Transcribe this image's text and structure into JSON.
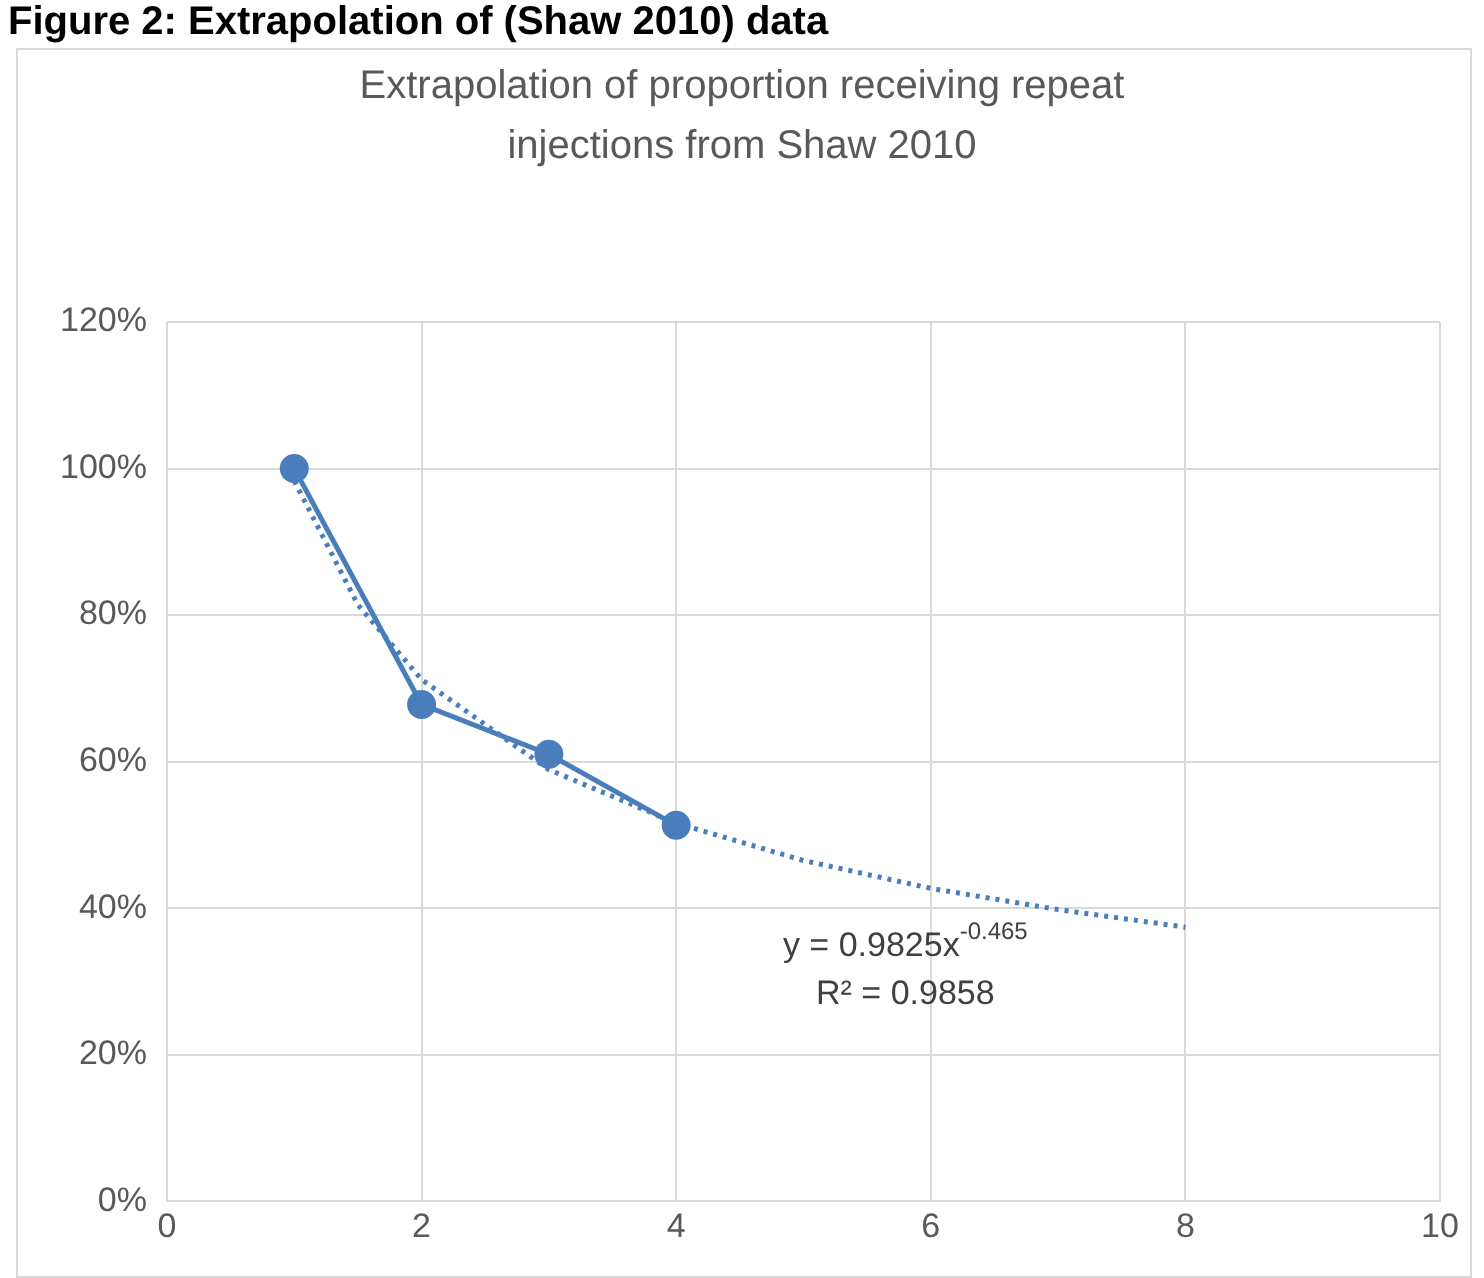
{
  "chart_data": {
    "type": "line",
    "title": "Figure 2: Extrapolation of (Shaw 2010) data",
    "subtitle": "Extrapolation of proportion receiving repeat injections from Shaw 2010",
    "x": [
      1,
      2,
      3,
      4
    ],
    "series": [
      {
        "type": "line",
        "color": "#4a7ebb",
        "marker": "circle",
        "line_style": "solid",
        "values": [
          100,
          67.8,
          61,
          51.3
        ]
      },
      {
        "type": "line",
        "color": "#4a7ebb",
        "marker": "none",
        "line_style": "dotted",
        "x": [
          1,
          1.5,
          2,
          3,
          4,
          5,
          6,
          7,
          8
        ],
        "values": [
          98.3,
          81.4,
          71.2,
          58.9,
          51.6,
          46.5,
          42.7,
          39.8,
          37.4
        ]
      }
    ],
    "xlim": [
      0,
      10
    ],
    "xticks": [
      0,
      2,
      4,
      6,
      8,
      10
    ],
    "ylim": [
      0,
      120
    ],
    "yticks": [
      {
        "value": 0,
        "label": "0%"
      },
      {
        "value": 20,
        "label": "20%"
      },
      {
        "value": 40,
        "label": "40%"
      },
      {
        "value": 60,
        "label": "60%"
      },
      {
        "value": 80,
        "label": "80%"
      },
      {
        "value": 100,
        "label": "100%"
      },
      {
        "value": 120,
        "label": "120%"
      }
    ],
    "grid": true,
    "legend": false,
    "annotations": [
      "y = 0.9825x$^{-0.465}$",
      "R² = 0.9858"
    ]
  }
}
